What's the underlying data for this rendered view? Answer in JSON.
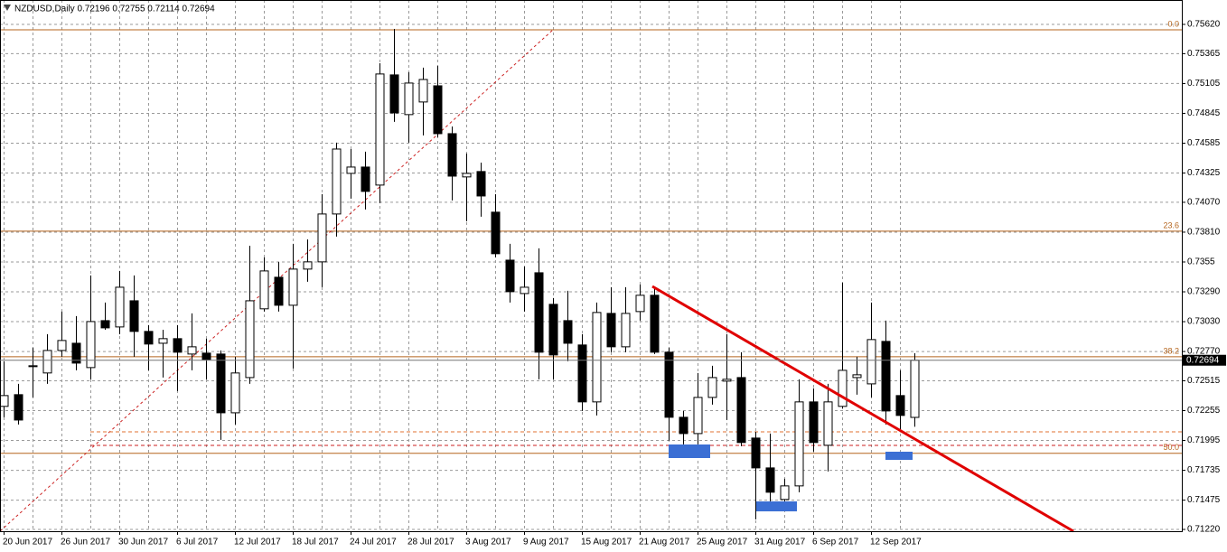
{
  "chart_data": {
    "type": "candlestick",
    "title": "NZDUSD,Daily  0.72196 0.72755 0.72114 0.72694",
    "categories": [
      "20 Jun 2017",
      null,
      null,
      null,
      "26 Jun 2017",
      null,
      null,
      null,
      "30 Jun 2017",
      null,
      null,
      null,
      "6 Jul 2017",
      null,
      null,
      null,
      "12 Jul 2017",
      null,
      null,
      null,
      "18 Jul 2017",
      null,
      null,
      null,
      "24 Jul 2017",
      null,
      null,
      null,
      "28 Jul 2017",
      null,
      null,
      null,
      "3 Aug 2017",
      null,
      null,
      null,
      "9 Aug 2017",
      null,
      null,
      null,
      "15 Aug 2017",
      null,
      null,
      null,
      "21 Aug 2017",
      null,
      null,
      null,
      "25 Aug 2017",
      null,
      null,
      null,
      "31 Aug 2017",
      null,
      null,
      null,
      "6 Sep 2017",
      null,
      null,
      null,
      "12 Sep 2017",
      null,
      null,
      null
    ],
    "open": [
      0.72292,
      0.72394,
      0.72638,
      0.72583,
      0.72779,
      0.72842,
      0.7263,
      0.73039,
      0.72984,
      0.73212,
      0.72945,
      0.72842,
      0.72882,
      0.72748,
      0.72756,
      0.72748,
      0.72236,
      0.72543,
      0.73142,
      0.73417,
      0.73173,
      0.73488,
      0.73551,
      0.73968,
      0.74322,
      0.74377,
      0.7422,
      0.7518,
      0.74834,
      0.74944,
      0.75085,
      0.74668,
      0.74291,
      0.74338,
      0.73984,
      0.73566,
      0.73275,
      0.73456,
      0.73181,
      0.73039,
      0.72827,
      0.72331,
      0.73102,
      0.72811,
      0.73118,
      0.7326,
      0.72764,
      0.72197,
      0.72055,
      0.7237,
      0.72512,
      0.72543,
      0.72016,
      0.71756,
      0.71481,
      0.71599,
      0.72331,
      0.71953,
      0.72292,
      0.72543,
      0.72488,
      0.72858,
      0.72386,
      0.72196
    ],
    "high": [
      0.72685,
      0.72488,
      0.72803,
      0.72921,
      0.73118,
      0.73079,
      0.73433,
      0.73197,
      0.73472,
      0.73433,
      0.73,
      0.7296,
      0.73,
      0.73102,
      0.72882,
      0.72779,
      0.72724,
      0.73692,
      0.7359,
      0.73551,
      0.73708,
      0.73747,
      0.74141,
      0.7459,
      0.74534,
      0.74511,
      0.75282,
      0.75581,
      0.75203,
      0.75243,
      0.75259,
      0.74731,
      0.74495,
      0.74416,
      0.74141,
      0.73708,
      0.73511,
      0.73669,
      0.73236,
      0.73299,
      0.72921,
      0.73197,
      0.7333,
      0.7333,
      0.73354,
      0.7333,
      0.72803,
      0.72252,
      0.72583,
      0.72646,
      0.72921,
      0.72764,
      0.72071,
      0.72055,
      0.71662,
      0.72528,
      0.72449,
      0.72488,
      0.7337,
      0.72724,
      0.73197,
      0.73039,
      0.72606,
      0.72755
    ],
    "low": [
      0.72197,
      0.72134,
      0.7237,
      0.72488,
      0.72724,
      0.72606,
      0.72528,
      0.7296,
      0.72921,
      0.72724,
      0.72606,
      0.72543,
      0.72425,
      0.72606,
      0.72528,
      0.72,
      0.72134,
      0.72488,
      0.73118,
      0.73118,
      0.72622,
      0.73378,
      0.7333,
      0.73771,
      0.74102,
      0.74007,
      0.74062,
      0.74771,
      0.7459,
      0.74653,
      0.74637,
      0.74086,
      0.73905,
      0.73944,
      0.7359,
      0.73197,
      0.73118,
      0.72528,
      0.72528,
      0.72685,
      0.72252,
      0.72213,
      0.72764,
      0.72764,
      0.73039,
      0.72748,
      0.71992,
      0.71961,
      0.71961,
      0.72307,
      0.72173,
      0.71945,
      0.71308,
      0.71465,
      0.71465,
      0.71544,
      0.71898,
      0.71725,
      0.72276,
      0.72394,
      0.7237,
      0.72134,
      0.72071,
      0.72114
    ],
    "close": [
      0.72386,
      0.72173,
      0.72646,
      0.72779,
      0.72866,
      0.72669,
      0.73031,
      0.72976,
      0.7333,
      0.72945,
      0.72835,
      0.72882,
      0.72764,
      0.72811,
      0.72701,
      0.72236,
      0.72583,
      0.73212,
      0.73472,
      0.73173,
      0.73488,
      0.73551,
      0.73968,
      0.74534,
      0.74377,
      0.74165,
      0.75188,
      0.74849,
      0.75109,
      0.7514,
      0.74668,
      0.74298,
      0.74322,
      0.74125,
      0.73622,
      0.73291,
      0.7333,
      0.72764,
      0.7274,
      0.72842,
      0.72331,
      0.7311,
      0.72811,
      0.73102,
      0.7326,
      0.72764,
      0.72197,
      0.72055,
      0.7237,
      0.72543,
      0.72528,
      0.71977,
      0.71756,
      0.71544,
      0.71599,
      0.72331,
      0.71977,
      0.72331,
      0.72606,
      0.72567,
      0.72874,
      0.72252,
      0.72213,
      0.72694
    ],
    "up_color": "#ffffff",
    "down_color": "#000000",
    "ylim": [
      0.7122,
      0.7562
    ],
    "yticks": [
      {
        "value": 0.7562,
        "label": "0.75620"
      },
      0.75365,
      0.75105,
      0.74845,
      0.74585,
      0.74325,
      {
        "value": 0.7407,
        "label": "0.74070"
      },
      {
        "value": 0.7381,
        "label": "0.73810"
      },
      0.7355,
      {
        "value": 0.7329,
        "label": "0.73290"
      },
      {
        "value": 0.7303,
        "label": "0.73030"
      },
      {
        "value": 0.7277,
        "label": "0.72770"
      },
      0.72515,
      0.72255,
      0.71995,
      0.71735,
      0.71475,
      {
        "value": 0.7122,
        "label": "0.71220"
      }
    ],
    "grid": true,
    "fib_color": "#b5651d",
    "fib_levels": [
      {
        "label": "0.0",
        "value": 0.75573
      },
      {
        "label": "23.6",
        "value": 0.73818
      },
      {
        "label": "38.2",
        "value": 0.72724
      },
      {
        "label": "50.0",
        "value": 0.71883
      }
    ]
  }
}
